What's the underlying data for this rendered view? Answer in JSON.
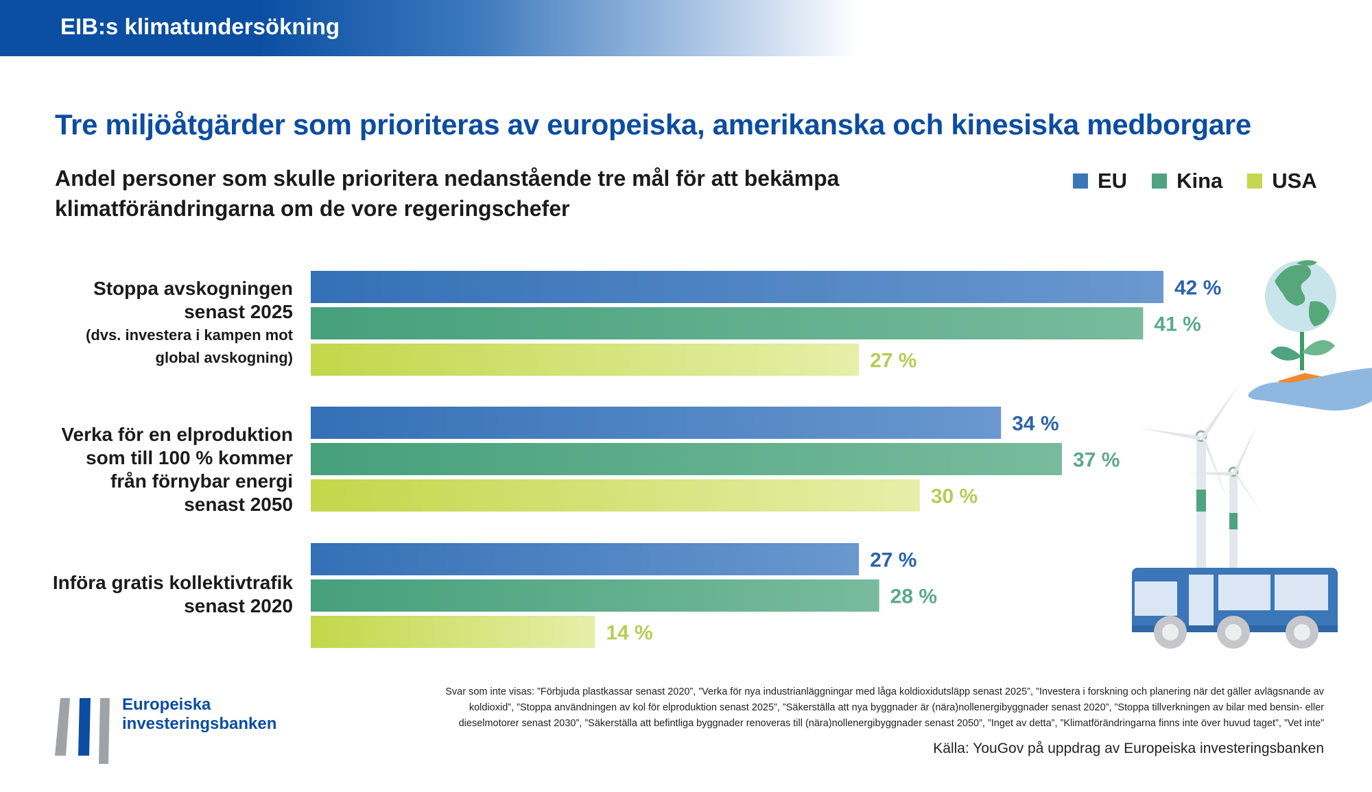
{
  "header": {
    "title": "EIB:s klimatundersökning"
  },
  "title": "Tre miljöåtgärder som prioriteras av europeiska, amerikanska och kinesiska medborgare",
  "subtitle": {
    "line1": "Andel personer som skulle prioritera nedanstående tre mål för att bekämpa",
    "line2": "klimatförändringarna om de vore regeringschefer"
  },
  "legend": [
    {
      "label": "EU",
      "color": "#3a76b8"
    },
    {
      "label": "Kina",
      "color": "#4fa381"
    },
    {
      "label": "USA",
      "color": "#c3d84f"
    }
  ],
  "categories_text": [
    {
      "lines": [
        "Stoppa avskogningen",
        "senast 2025"
      ],
      "note": [
        "(dvs. investera i kampen mot",
        "global avskogning)"
      ]
    },
    {
      "lines": [
        "Verka för en elproduktion",
        "som till 100 % kommer",
        "från förnybar energi",
        "senast 2050"
      ],
      "note": []
    },
    {
      "lines": [
        "Införa gratis kollektivtrafik",
        "senast 2020"
      ],
      "note": []
    }
  ],
  "chart_data": {
    "type": "bar",
    "orientation": "horizontal",
    "categories": [
      "Stoppa avskogningen senast 2025 (dvs. investera i kampen mot global avskogning)",
      "Verka för en elproduktion som till 100 % kommer från förnybar energi senast 2050",
      "Införa gratis kollektivtrafik senast 2020"
    ],
    "series": [
      {
        "name": "EU",
        "values": [
          42,
          34,
          27
        ],
        "color": "#3a76b8",
        "label_color": "#2b64aa"
      },
      {
        "name": "Kina",
        "values": [
          41,
          37,
          28
        ],
        "color": "#4fa381",
        "label_color": "#5aaa8a"
      },
      {
        "name": "USA",
        "values": [
          27,
          30,
          14
        ],
        "color": "#c3d84f",
        "label_color": "#b6cc55"
      }
    ],
    "value_suffix": " %",
    "xlim": [
      0,
      45
    ]
  },
  "footnote": {
    "line1": "Svar som inte visas: ”Förbjuda plastkassar senast 2020”, ”Verka för nya industrianläggningar med låga koldioxidutsläpp senast 2025”, ”Investera i forskning och planering när det gäller avlägsnande av",
    "line2": "koldioxid”, ”Stoppa användningen av kol för elproduktion senast 2025”, ”Säkerställa att nya byggnader är (nära)nollenergibyggnader senast 2020”, ”Stoppa tillverkningen av bilar med bensin- eller",
    "line3": "dieselmotorer senast 2030”, ”Säkerställa att befintliga byggnader renoveras till (nära)nollenergibyggnader senast 2050”, ”Inget av detta”, ”Klimatförändringarna finns inte över huvud taget”, ”Vet inte”"
  },
  "source": "Källa: YouGov på uppdrag av Europeiska investeringsbanken",
  "logo": {
    "line1": "Europeiska",
    "line2": "investeringsbanken"
  }
}
